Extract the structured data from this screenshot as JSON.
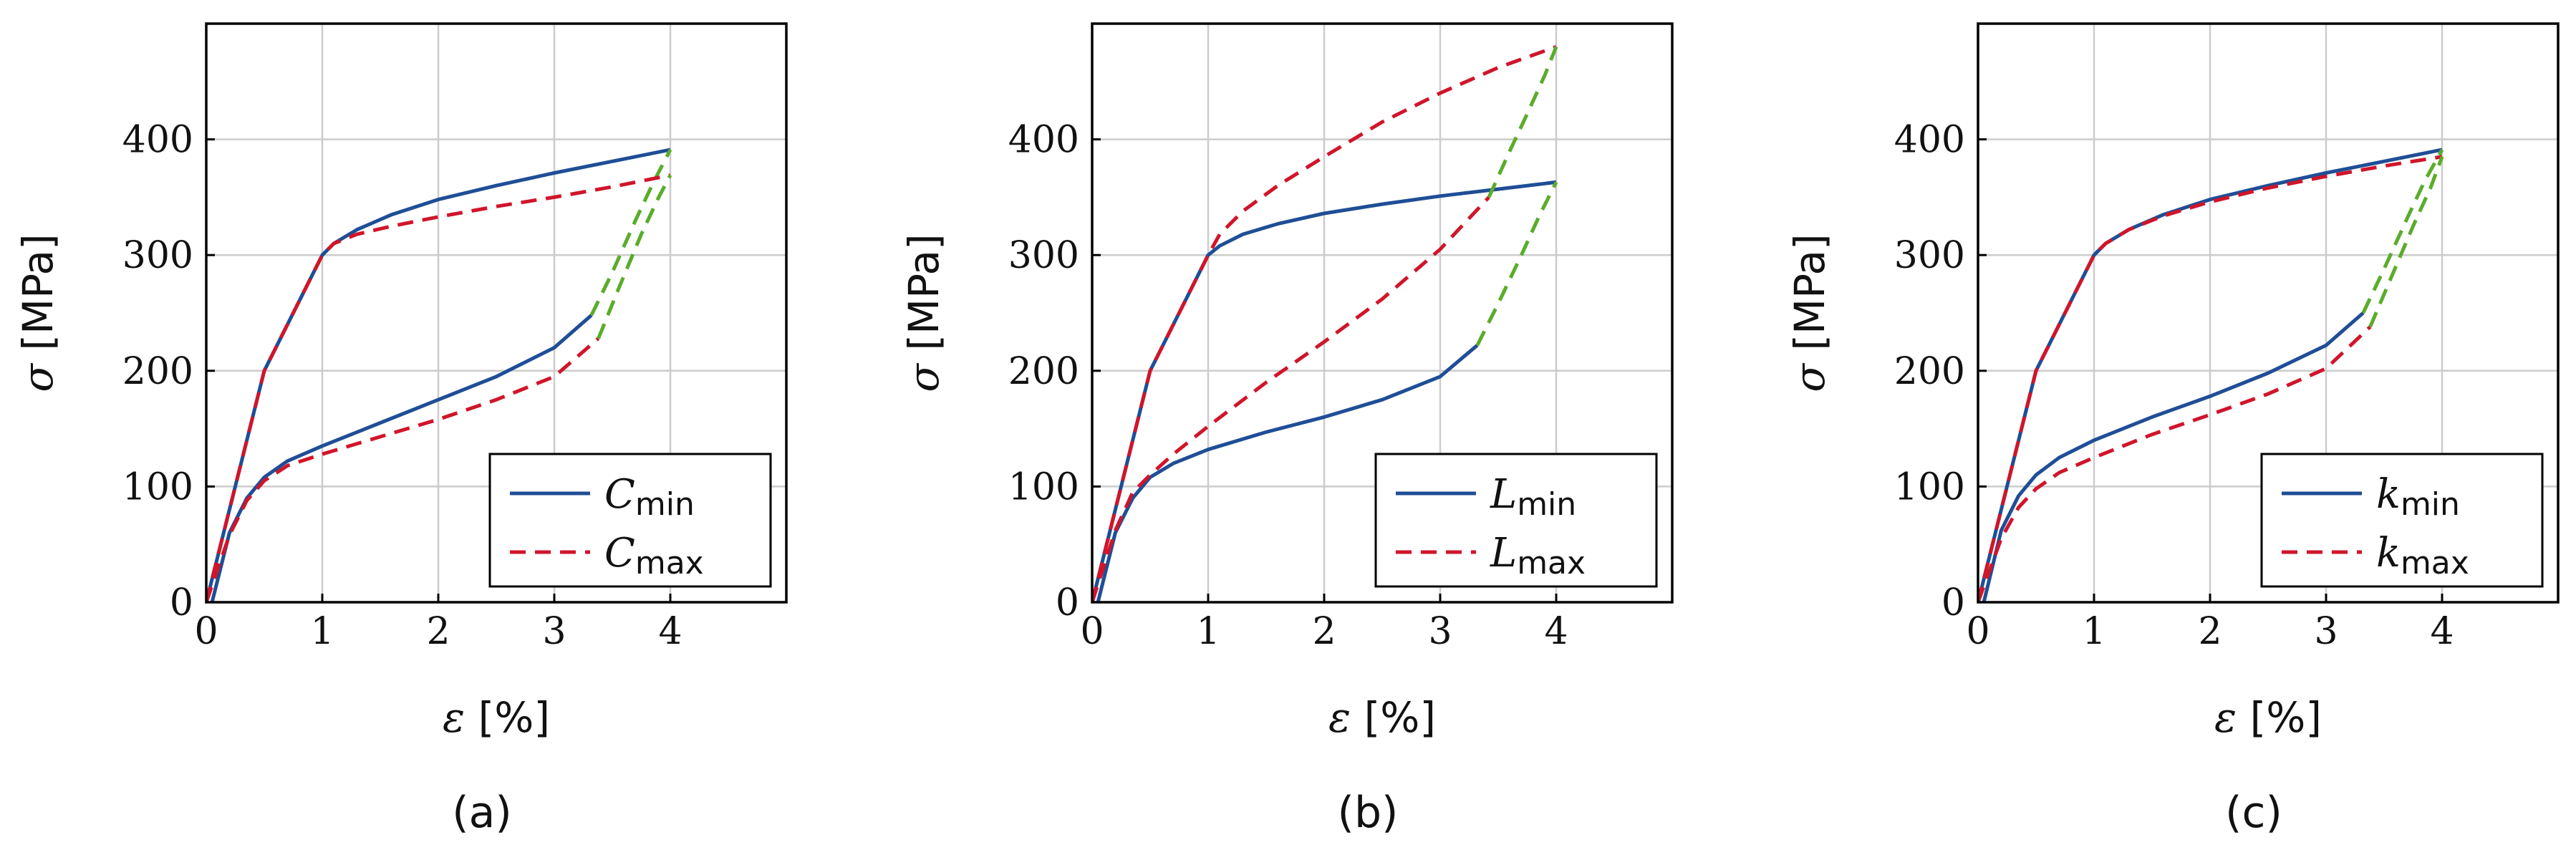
{
  "colors": {
    "min_line": "#1f4e96",
    "max_line": "#d0152a",
    "unload_line": "#5aac2a",
    "grid": "#cccccc",
    "axes": "#000000"
  },
  "chart_data": [
    {
      "type": "line",
      "panel": "a",
      "caption": "(a)",
      "xlabel_symbol": "ε",
      "xlabel_unit": "[%]",
      "ylabel_symbol": "σ",
      "ylabel_unit": "[MPa]",
      "xlim": [
        0,
        5
      ],
      "ylim": [
        0,
        500
      ],
      "xticks": [
        0,
        1,
        2,
        3,
        4
      ],
      "yticks": [
        0,
        100,
        200,
        300,
        400
      ],
      "grid": true,
      "legend_position": "bottom-right",
      "legend": [
        {
          "symbol": "C",
          "sub": "min",
          "style": "solid"
        },
        {
          "symbol": "C",
          "sub": "max",
          "style": "dashed"
        }
      ],
      "series": [
        {
          "name": "C_min loading",
          "style": "solid",
          "color_key": "min_line",
          "x": [
            0,
            0.25,
            0.5,
            1.0,
            1.1,
            1.3,
            1.6,
            2.0,
            2.5,
            3.0,
            3.5,
            4.0
          ],
          "y": [
            0,
            100,
            200,
            300,
            310,
            322,
            335,
            348,
            360,
            371,
            381,
            391
          ]
        },
        {
          "name": "C_min unloading",
          "style": "solid",
          "color_key": "min_line",
          "x": [
            0.05,
            0.2,
            0.35,
            0.5,
            0.7,
            1.0,
            1.5,
            2.0,
            2.5,
            3.0,
            3.32
          ],
          "y": [
            0,
            60,
            90,
            108,
            122,
            135,
            155,
            175,
            195,
            220,
            248
          ]
        },
        {
          "name": "C_min reloading",
          "style": "dashed",
          "color_key": "unload_line",
          "x": [
            3.32,
            3.5,
            3.7,
            3.85,
            4.0
          ],
          "y": [
            248,
            285,
            330,
            362,
            391
          ]
        },
        {
          "name": "C_max loading",
          "style": "dashed",
          "color_key": "max_line",
          "x": [
            0,
            0.25,
            0.5,
            1.0,
            1.1,
            1.3,
            1.6,
            2.0,
            2.5,
            3.0,
            3.5,
            4.0
          ],
          "y": [
            0,
            100,
            200,
            300,
            310,
            318,
            325,
            333,
            342,
            350,
            359,
            369
          ]
        },
        {
          "name": "C_max unloading",
          "style": "dashed",
          "color_key": "max_line",
          "x": [
            0,
            0.2,
            0.35,
            0.5,
            0.7,
            1.0,
            1.5,
            2.0,
            2.5,
            3.0,
            3.38
          ],
          "y": [
            0,
            58,
            88,
            105,
            118,
            128,
            143,
            158,
            175,
            195,
            228
          ]
        },
        {
          "name": "C_max reloading",
          "style": "dashed",
          "color_key": "unload_line",
          "x": [
            3.38,
            3.55,
            3.75,
            3.9,
            4.0
          ],
          "y": [
            228,
            270,
            318,
            350,
            369
          ]
        }
      ]
    },
    {
      "type": "line",
      "panel": "b",
      "caption": "(b)",
      "xlabel_symbol": "ε",
      "xlabel_unit": "[%]",
      "ylabel_symbol": "σ",
      "ylabel_unit": "[MPa]",
      "xlim": [
        0,
        5
      ],
      "ylim": [
        0,
        500
      ],
      "xticks": [
        0,
        1,
        2,
        3,
        4
      ],
      "yticks": [
        0,
        100,
        200,
        300,
        400
      ],
      "grid": true,
      "legend_position": "bottom-right",
      "legend": [
        {
          "symbol": "L",
          "sub": "min",
          "style": "solid"
        },
        {
          "symbol": "L",
          "sub": "max",
          "style": "dashed"
        }
      ],
      "series": [
        {
          "name": "L_min loading",
          "style": "solid",
          "color_key": "min_line",
          "x": [
            0,
            0.25,
            0.5,
            1.0,
            1.1,
            1.3,
            1.6,
            2.0,
            2.5,
            3.0,
            3.5,
            4.0
          ],
          "y": [
            0,
            100,
            200,
            300,
            308,
            318,
            327,
            336,
            344,
            351,
            357,
            363
          ]
        },
        {
          "name": "L_min unloading",
          "style": "solid",
          "color_key": "min_line",
          "x": [
            0.05,
            0.2,
            0.35,
            0.5,
            0.7,
            1.0,
            1.5,
            2.0,
            2.5,
            3.0,
            3.32
          ],
          "y": [
            0,
            60,
            90,
            108,
            120,
            132,
            147,
            160,
            175,
            195,
            222
          ]
        },
        {
          "name": "L_min reloading",
          "style": "dashed",
          "color_key": "unload_line",
          "x": [
            3.32,
            3.5,
            3.7,
            3.85,
            4.0
          ],
          "y": [
            222,
            258,
            300,
            333,
            363
          ]
        },
        {
          "name": "L_max loading",
          "style": "dashed",
          "color_key": "max_line",
          "x": [
            0,
            0.25,
            0.5,
            1.0,
            1.1,
            1.3,
            1.6,
            2.0,
            2.5,
            3.0,
            3.5,
            4.0
          ],
          "y": [
            0,
            100,
            200,
            300,
            318,
            338,
            360,
            385,
            415,
            440,
            462,
            480
          ]
        },
        {
          "name": "L_max unloading",
          "style": "dashed",
          "color_key": "max_line",
          "x": [
            0,
            0.2,
            0.35,
            0.5,
            0.7,
            1.0,
            1.5,
            2.0,
            2.5,
            3.0,
            3.42
          ],
          "y": [
            0,
            62,
            95,
            110,
            128,
            152,
            190,
            225,
            262,
            305,
            350
          ]
        },
        {
          "name": "L_max reloading",
          "style": "dashed",
          "color_key": "unload_line",
          "x": [
            3.42,
            3.6,
            3.75,
            3.9,
            4.0
          ],
          "y": [
            350,
            390,
            422,
            455,
            480
          ]
        }
      ]
    },
    {
      "type": "line",
      "panel": "c",
      "caption": "(c)",
      "xlabel_symbol": "ε",
      "xlabel_unit": "[%]",
      "ylabel_symbol": "σ",
      "ylabel_unit": "[MPa]",
      "xlim": [
        0,
        5
      ],
      "ylim": [
        0,
        500
      ],
      "xticks": [
        0,
        1,
        2,
        3,
        4
      ],
      "yticks": [
        0,
        100,
        200,
        300,
        400
      ],
      "grid": true,
      "legend_position": "bottom-right",
      "legend": [
        {
          "symbol": "k",
          "sub": "min",
          "style": "solid"
        },
        {
          "symbol": "k",
          "sub": "max",
          "style": "dashed"
        }
      ],
      "series": [
        {
          "name": "k_min loading",
          "style": "solid",
          "color_key": "min_line",
          "x": [
            0,
            0.25,
            0.5,
            1.0,
            1.1,
            1.3,
            1.6,
            2.0,
            2.5,
            3.0,
            3.5,
            4.0
          ],
          "y": [
            0,
            100,
            200,
            300,
            310,
            322,
            335,
            348,
            360,
            371,
            381,
            391
          ]
        },
        {
          "name": "k_min unloading",
          "style": "solid",
          "color_key": "min_line",
          "x": [
            0.05,
            0.2,
            0.35,
            0.5,
            0.7,
            1.0,
            1.5,
            2.0,
            2.5,
            3.0,
            3.32
          ],
          "y": [
            0,
            62,
            92,
            110,
            125,
            140,
            160,
            178,
            198,
            222,
            250
          ]
        },
        {
          "name": "k_min reloading",
          "style": "dashed",
          "color_key": "unload_line",
          "x": [
            3.32,
            3.5,
            3.7,
            3.85,
            4.0
          ],
          "y": [
            250,
            288,
            332,
            364,
            391
          ]
        },
        {
          "name": "k_max loading",
          "style": "dashed",
          "color_key": "max_line",
          "x": [
            0,
            0.25,
            0.5,
            1.0,
            1.1,
            1.3,
            1.6,
            2.0,
            2.5,
            3.0,
            3.5,
            4.0
          ],
          "y": [
            0,
            100,
            200,
            300,
            310,
            322,
            334,
            346,
            358,
            368,
            377,
            385
          ]
        },
        {
          "name": "k_max unloading",
          "style": "dashed",
          "color_key": "max_line",
          "x": [
            0,
            0.2,
            0.35,
            0.5,
            0.7,
            1.0,
            1.5,
            2.0,
            2.5,
            3.0,
            3.38
          ],
          "y": [
            0,
            55,
            82,
            98,
            112,
            125,
            145,
            162,
            180,
            202,
            238
          ]
        },
        {
          "name": "k_max reloading",
          "style": "dashed",
          "color_key": "unload_line",
          "x": [
            3.38,
            3.55,
            3.75,
            3.9,
            4.0
          ],
          "y": [
            238,
            278,
            325,
            358,
            385
          ]
        }
      ]
    }
  ]
}
